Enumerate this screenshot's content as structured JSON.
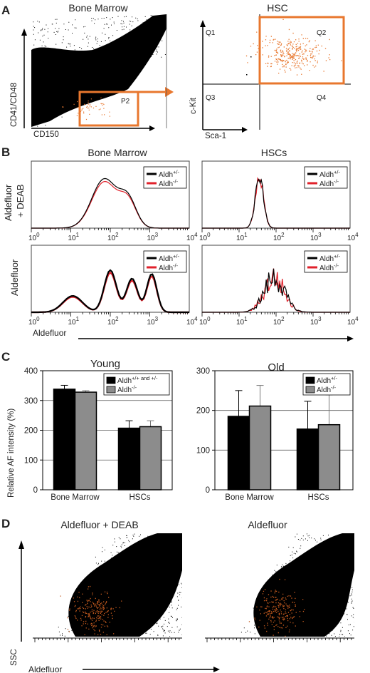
{
  "panels": {
    "A": {
      "label": "A",
      "left": {
        "title": "Bone Marrow",
        "xlabel": "CD150",
        "ylabel": "CD41/CD48",
        "gate": "P2"
      },
      "right": {
        "title": "HSC",
        "xlabel": "Sca-1",
        "ylabel": "c-Kit",
        "quadrants": [
          "Q1",
          "Q2",
          "Q3",
          "Q4"
        ]
      },
      "colors": {
        "gate": "#e8772e",
        "events": "#000000",
        "gated_events": "#e8772e"
      }
    },
    "B": {
      "label": "B",
      "col_titles": [
        "Bone Marrow",
        "HSCs"
      ],
      "row_labels": [
        "Aldefluor\n+ DEAB",
        "Aldefluor"
      ],
      "xlabel": "Aldefluor",
      "x_ticks": [
        {
          "base": "10",
          "exp": "0"
        },
        {
          "base": "10",
          "exp": "1"
        },
        {
          "base": "10",
          "exp": "2"
        },
        {
          "base": "10",
          "exp": "3"
        },
        {
          "base": "10",
          "exp": "4"
        }
      ],
      "legend": [
        {
          "base": "Aldh",
          "sup": "+/-",
          "color": "#000000"
        },
        {
          "base": "Aldh",
          "sup": "-/-",
          "color": "#e0212b"
        }
      ]
    },
    "C": {
      "label": "C",
      "ylabel": "Relative AF intensity (%)"
    },
    "D": {
      "label": "D",
      "titles": [
        "Aldefluor + DEAB",
        "Aldefluor"
      ],
      "ylabel": "SSC",
      "xlabel": "Aldefluor"
    }
  },
  "chart_data": [
    {
      "type": "bar",
      "title": "Young",
      "categories": [
        "Bone Marrow",
        "HSCs"
      ],
      "series": [
        {
          "name": "Aldh+/+ and +/-",
          "legend_base": "Aldh",
          "legend_sup": "+/+ and +/-",
          "color": "#000000",
          "values": [
            338,
            207
          ],
          "errors": [
            13,
            25
          ]
        },
        {
          "name": "Aldh-/-",
          "legend_base": "Aldh",
          "legend_sup": "-/-",
          "color": "#8c8c8c",
          "values": [
            328,
            212
          ],
          "errors": [
            5,
            20
          ]
        }
      ],
      "ylim": [
        0,
        400
      ],
      "yticks": [
        0,
        100,
        200,
        300,
        400
      ],
      "ylabel": "Relative AF intensity (%)",
      "grid": true
    },
    {
      "type": "bar",
      "title": "Old",
      "categories": [
        "Bone Marrow",
        "HSCs"
      ],
      "series": [
        {
          "name": "Aldh+/-",
          "legend_base": "Aldh",
          "legend_sup": "+/-",
          "color": "#000000",
          "values": [
            185,
            153
          ],
          "errors": [
            65,
            70
          ]
        },
        {
          "name": "Aldh-/-",
          "legend_base": "Aldh",
          "legend_sup": "-/-",
          "color": "#8c8c8c",
          "values": [
            211,
            164
          ],
          "errors": [
            52,
            75
          ]
        }
      ],
      "ylim": [
        0,
        300
      ],
      "yticks": [
        0,
        100,
        200,
        300
      ],
      "grid": true
    }
  ]
}
